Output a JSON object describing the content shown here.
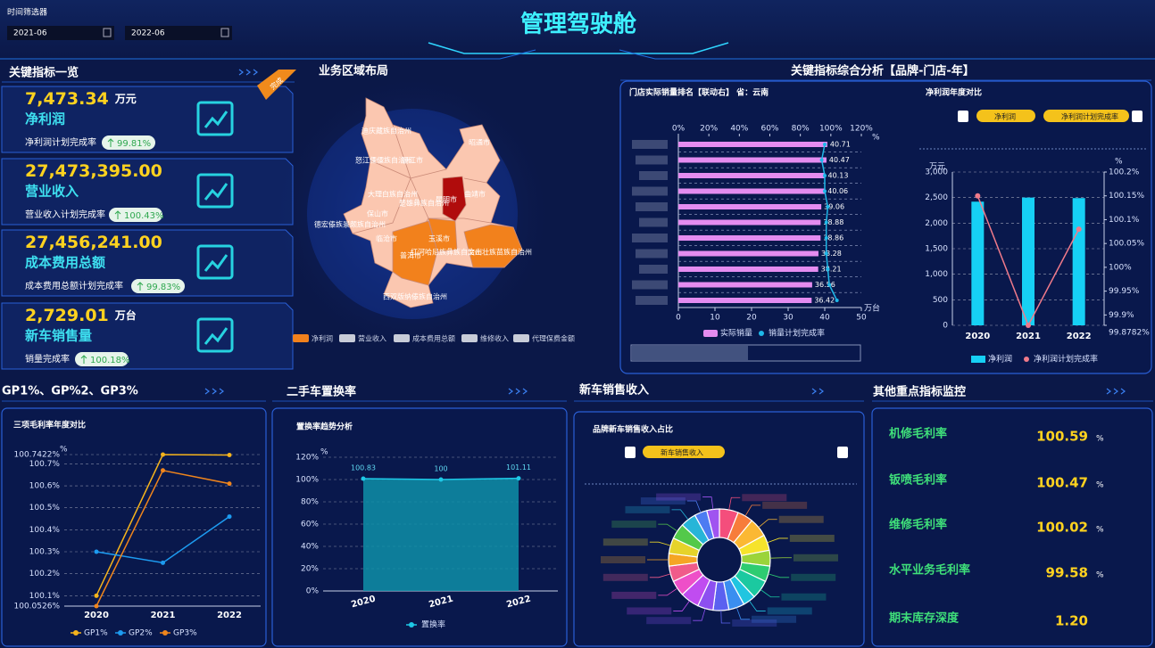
{
  "header": {
    "title": "管理驾驶舱",
    "filter_label": "时间筛选器",
    "start_date": "2021-06",
    "end_date": "2022-06"
  },
  "panels": {
    "kpi": "关键指标一览",
    "map": "业务区域布局",
    "analysis": "关键指标综合分析【品牌-门店-年】",
    "gp": "GP1%、GP%2、GP3%",
    "used_car": "二手车置换率",
    "new_car": "新车销售收入",
    "other": "其他重点指标监控"
  },
  "badge": "完成",
  "kpis": [
    {
      "value": "7,473.34",
      "unit": "万元",
      "name": "净利润",
      "rate_label": "净利润计划完成率",
      "rate": "99.81%"
    },
    {
      "value": "27,473,395.00",
      "name": "营业收入",
      "rate_label": "营业收入计划完成率",
      "rate": "100.43%"
    },
    {
      "value": "27,456,241.00",
      "name": "成本费用总额",
      "rate_label": "成本费用总额计划完成率",
      "rate": "99.83%"
    },
    {
      "value": "2,729.01",
      "unit": "万台",
      "name": "新车销售量",
      "rate_label": "销量完成率",
      "rate": "100.18%"
    }
  ],
  "map": {
    "regions": [
      "迪庆藏族自治州",
      "昭通市",
      "怒江傈僳族自治州",
      "丽江市",
      "大理白族自治州",
      "楚雄彝族自治州",
      "昆明市",
      "曲靖市",
      "保山市",
      "德宏傣族景颇族自治州",
      "临沧市",
      "玉溪市",
      "普洱市",
      "红河哈尼族彝族自治州",
      "文山壮族苗族自治州",
      "西双版纳傣族自治州"
    ],
    "legend": [
      "净利润",
      "营业收入",
      "成本费用总额",
      "维修收入",
      "代理保费金额"
    ]
  },
  "other_metrics": [
    {
      "name": "机修毛利率",
      "value": "100.59",
      "unit": "%"
    },
    {
      "name": "钣喷毛利率",
      "value": "100.47",
      "unit": "%"
    },
    {
      "name": "维修毛利率",
      "value": "100.02",
      "unit": "%"
    },
    {
      "name": "水平业务毛利率",
      "value": "99.58",
      "unit": "%"
    },
    {
      "name": "期末库存深度",
      "value": "1.20"
    }
  ],
  "chart_data": [
    {
      "type": "hbar",
      "title": "门店实际销量排名【联动右】 省：云南",
      "categories": [
        null,
        null,
        null,
        null,
        null,
        null,
        null,
        null,
        null,
        null,
        null
      ],
      "series": [
        {
          "name": "实际销量",
          "color": "#e48cf0",
          "values": [
            40.71,
            40.47,
            40.13,
            40.06,
            39.06,
            38.88,
            38.86,
            38.28,
            38.21,
            36.56,
            36.42
          ]
        },
        {
          "name": "销量计划完成率",
          "color": "#1eb8e8",
          "axis": "x2",
          "values": [
            96,
            94,
            96,
            96,
            98,
            97,
            97,
            97,
            98,
            99,
            104
          ]
        }
      ],
      "xlim": [
        0,
        50
      ],
      "xticks": [
        0,
        10,
        20,
        30,
        40,
        50
      ],
      "x_unit": "万台",
      "x2lim": [
        0,
        120
      ],
      "x2ticks": [
        {
          "value": 0,
          "label": "0%"
        },
        {
          "value": 20,
          "label": "20%"
        },
        {
          "value": 40,
          "label": "40%"
        },
        {
          "value": 60,
          "label": "60%"
        },
        {
          "value": 80,
          "label": "80%"
        },
        {
          "value": 100,
          "label": "100%"
        },
        {
          "value": 120,
          "label": "120%"
        }
      ],
      "x2_unit": "%"
    },
    {
      "type": "bar",
      "title": "净利润年度对比",
      "buttons": [
        "净利润",
        "净利润计划完成率"
      ],
      "categories": [
        "2020",
        "2021",
        "2022"
      ],
      "series": [
        {
          "name": "净利润",
          "color": "#16d0f5",
          "values": [
            2420,
            2500,
            2490
          ]
        },
        {
          "name": "净利润计划完成率",
          "color": "#f07a8a",
          "axis": "y2",
          "values": [
            100.15,
            99.8782,
            100.08
          ]
        }
      ],
      "ylim": [
        0,
        3000
      ],
      "yticks": [
        0,
        500,
        {
          "value": 1000,
          "label": "1,000"
        },
        {
          "value": 1500,
          "label": "1,500"
        },
        {
          "value": 2000,
          "label": "2,000"
        },
        {
          "value": 2500,
          "label": "2,500"
        },
        {
          "value": 3000,
          "label": "3,000"
        }
      ],
      "y_unit": "万元",
      "y2lim": [
        99.8782,
        100.2
      ],
      "y2ticks": [
        {
          "value": 99.8782,
          "label": "99.8782%"
        },
        {
          "value": 99.9,
          "label": "99.9%"
        },
        {
          "value": 99.95,
          "label": "99.95%"
        },
        {
          "value": 100,
          "label": "100%"
        },
        {
          "value": 100.05,
          "label": "100.05%"
        },
        {
          "value": 100.1,
          "label": "100.1%"
        },
        {
          "value": 100.15,
          "label": "100.15%"
        },
        {
          "value": 100.2,
          "label": "100.2%"
        }
      ],
      "y2_unit": "%",
      "grid": true
    },
    {
      "type": "line",
      "title": "三项毛利率年度对比",
      "categories": [
        "2020",
        "2021",
        "2022"
      ],
      "series": [
        {
          "name": "GP1%",
          "color": "#f5b31c",
          "values": [
            100.1,
            100.7422,
            100.74
          ]
        },
        {
          "name": "GP2%",
          "color": "#1d9bf0",
          "values": [
            100.3,
            100.25,
            100.46
          ]
        },
        {
          "name": "GP3%",
          "color": "#f0851c",
          "values": [
            100.0526,
            100.67,
            100.61
          ]
        }
      ],
      "ylim": [
        100.0526,
        100.7422
      ],
      "yticks": [
        {
          "value": 100.0526,
          "label": "100.0526%"
        },
        {
          "value": 100.1,
          "label": "100.1%"
        },
        {
          "value": 100.2,
          "label": "100.2%"
        },
        {
          "value": 100.3,
          "label": "100.3%"
        },
        {
          "value": 100.4,
          "label": "100.4%"
        },
        {
          "value": 100.5,
          "label": "100.5%"
        },
        {
          "value": 100.6,
          "label": "100.6%"
        },
        {
          "value": 100.7,
          "label": "100.7%"
        },
        {
          "value": 100.7422,
          "label": "100.7422%"
        }
      ],
      "y_unit": "%",
      "grid": true
    },
    {
      "type": "area",
      "title": "置换率趋势分析",
      "categories": [
        "2020",
        "2021",
        "2022"
      ],
      "series": [
        {
          "name": "置换率",
          "color": "#1ec8e6",
          "values": [
            100.83,
            100,
            101.11
          ]
        }
      ],
      "ylim": [
        0,
        120
      ],
      "yticks": [
        {
          "value": 0,
          "label": "0%"
        },
        {
          "value": 20,
          "label": "20%"
        },
        {
          "value": 40,
          "label": "40%"
        },
        {
          "value": 60,
          "label": "60%"
        },
        {
          "value": 80,
          "label": "80%"
        },
        {
          "value": 100,
          "label": "100%"
        },
        {
          "value": 120,
          "label": "120%"
        }
      ],
      "y_unit": "%",
      "grid": true
    },
    {
      "type": "pie",
      "title": "品牌新车销售收入占比",
      "button": "新车销售收入",
      "categories": [
        null,
        null,
        null,
        null,
        null,
        null,
        null,
        null,
        null,
        null,
        null,
        null,
        null,
        null,
        null,
        null,
        null,
        null,
        null,
        null
      ],
      "values": [
        6,
        5,
        6,
        5,
        5,
        5,
        6,
        4,
        5,
        5,
        5,
        6,
        5,
        5,
        4,
        5,
        5,
        5,
        4,
        4
      ],
      "colors": [
        "#f44e7c",
        "#f77c3b",
        "#fbb833",
        "#f6e32b",
        "#9bd43a",
        "#2ecc71",
        "#1bc9a0",
        "#21c5e0",
        "#3a8ef0",
        "#5b61f0",
        "#8d4ff0",
        "#c04cf0",
        "#ee4fc8",
        "#f05b8a",
        "#f5a524",
        "#e6d32a",
        "#53c94a",
        "#27b5d8",
        "#4d7cf2",
        "#a054f0"
      ]
    }
  ]
}
